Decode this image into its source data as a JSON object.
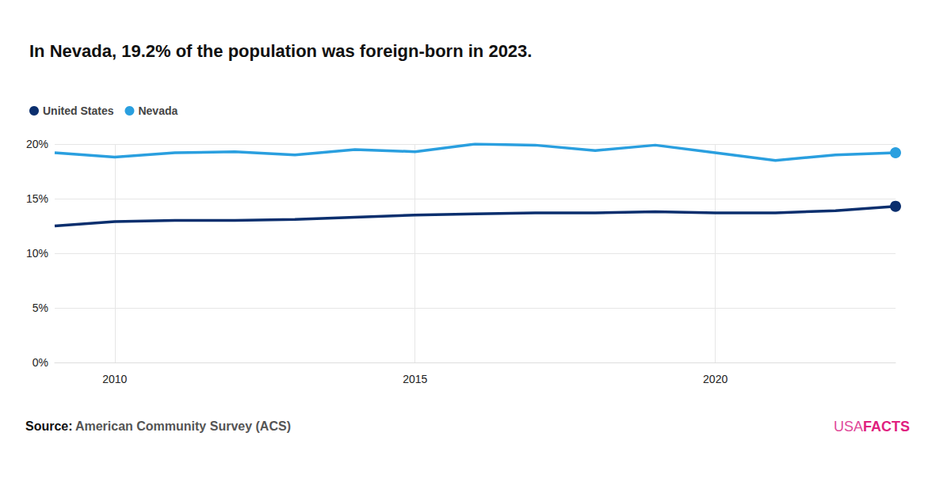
{
  "chart_data": {
    "type": "line",
    "title": "In Nevada, 19.2% of the population was foreign-born in 2023.",
    "x": [
      2009,
      2010,
      2011,
      2012,
      2013,
      2014,
      2015,
      2016,
      2017,
      2018,
      2019,
      2020,
      2021,
      2022,
      2023
    ],
    "series": [
      {
        "name": "United States",
        "color": "#0b2f6e",
        "marker": "last",
        "values": [
          12.5,
          12.9,
          13.0,
          13.0,
          13.1,
          13.3,
          13.5,
          13.6,
          13.7,
          13.7,
          13.8,
          13.7,
          13.7,
          13.9,
          14.3
        ]
      },
      {
        "name": "Nevada",
        "color": "#2a9fdf",
        "marker": "last",
        "values": [
          19.2,
          18.8,
          19.2,
          19.3,
          19.0,
          19.5,
          19.3,
          20.0,
          19.9,
          19.4,
          19.9,
          19.2,
          18.5,
          19.0,
          19.2
        ]
      }
    ],
    "xlim": [
      2009,
      2023
    ],
    "xticks": [
      2010,
      2015,
      2020
    ],
    "ylim": [
      0,
      20
    ],
    "yticks": [
      {
        "value": 0,
        "label": "0%"
      },
      {
        "value": 5,
        "label": "5%"
      },
      {
        "value": 10,
        "label": "10%"
      },
      {
        "value": 15,
        "label": "15%"
      },
      {
        "value": 20,
        "label": "20%"
      }
    ],
    "grid": true,
    "legend": "top-left",
    "source_label": "Source:",
    "source": "American Community Survey (ACS)",
    "logo": [
      "USA",
      "FACTS"
    ]
  }
}
